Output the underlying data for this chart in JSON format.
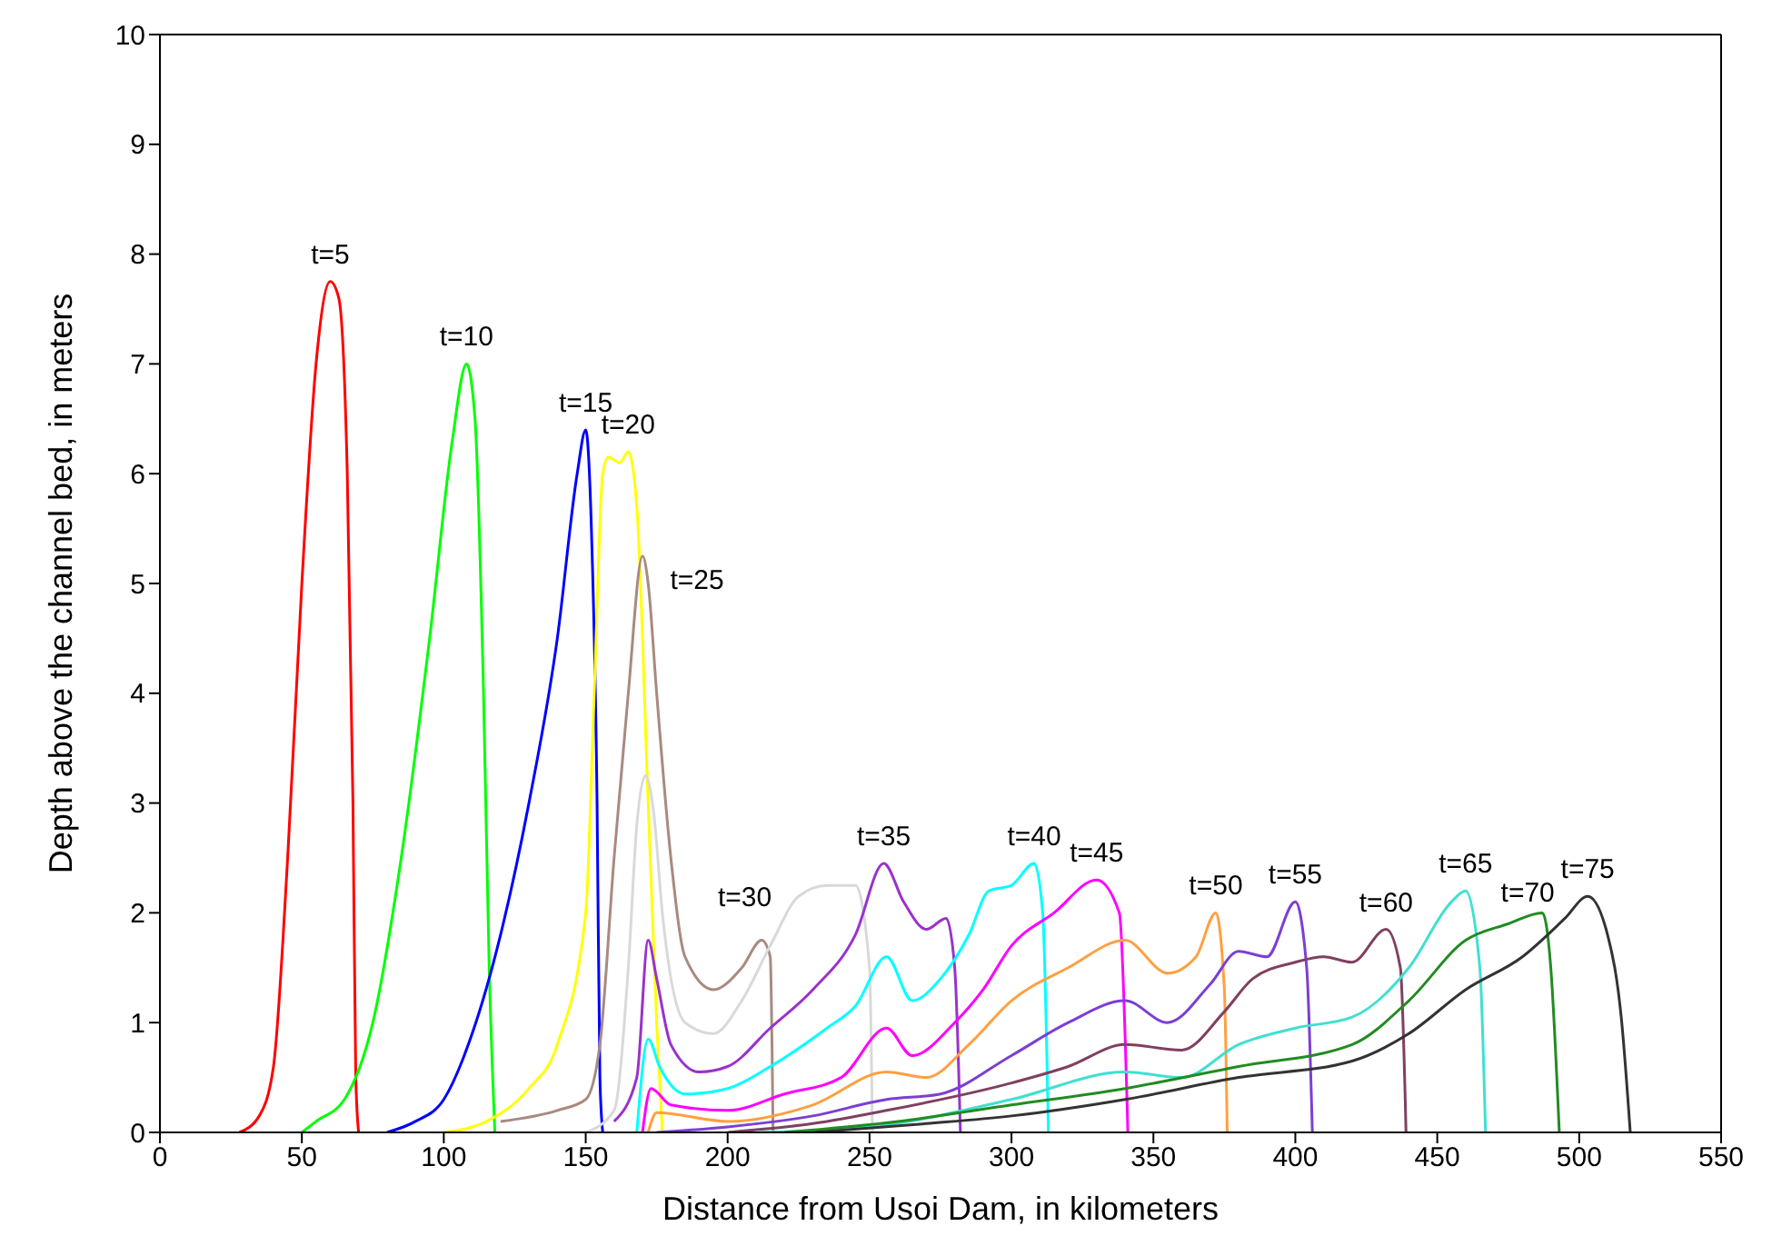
{
  "chart_data": {
    "type": "line",
    "xlabel": "Distance from Usoi Dam, in kilometers",
    "ylabel": "Depth above the channel bed, in meters",
    "xlim": [
      0,
      550
    ],
    "ylim": [
      0,
      10
    ],
    "xticks": [
      0,
      50,
      100,
      150,
      200,
      250,
      300,
      350,
      400,
      450,
      500,
      550
    ],
    "yticks": [
      0,
      1,
      2,
      3,
      4,
      5,
      6,
      7,
      8,
      9,
      10
    ],
    "legend": false,
    "series": [
      {
        "name": "t=5",
        "color": "#ff0000",
        "x": [
          28,
          35,
          40,
          45,
          50,
          55,
          60,
          63,
          66,
          68,
          69,
          70
        ],
        "values": [
          0,
          0.15,
          0.6,
          2.5,
          5,
          7,
          7.75,
          7.6,
          6,
          3,
          0.5,
          0
        ]
      },
      {
        "name": "t=10",
        "color": "#00ff00",
        "x": [
          50,
          55,
          65,
          75,
          85,
          95,
          103,
          108,
          111,
          114,
          116,
          118
        ],
        "values": [
          0,
          0.1,
          0.3,
          1,
          2.5,
          4.5,
          6.3,
          7,
          6.5,
          4,
          1.5,
          0
        ]
      },
      {
        "name": "t=15",
        "color": "#0000ff",
        "x": [
          80,
          90,
          100,
          110,
          120,
          130,
          140,
          147,
          150,
          152,
          154,
          155,
          156
        ],
        "values": [
          0,
          0.1,
          0.3,
          0.9,
          1.8,
          3,
          4.5,
          6,
          6.4,
          5.5,
          3,
          0.5,
          0
        ]
      },
      {
        "name": "t=20",
        "color": "#ffff00",
        "x": [
          100,
          115,
          130,
          140,
          150,
          153,
          156,
          158,
          162,
          165,
          168,
          172,
          175,
          177
        ],
        "values": [
          0,
          0.1,
          0.4,
          0.8,
          2,
          4,
          6,
          6.15,
          6.1,
          6.2,
          5.7,
          3,
          1,
          0
        ]
      },
      {
        "name": "t=25",
        "color": "#a88a80",
        "x": [
          120,
          140,
          150,
          155,
          160,
          165,
          170,
          172,
          175,
          180,
          185,
          195,
          205,
          212,
          215,
          216
        ],
        "values": [
          0.1,
          0.2,
          0.3,
          0.8,
          2.5,
          4,
          5.25,
          5,
          4,
          2.5,
          1.6,
          1.3,
          1.5,
          1.75,
          1.6,
          0
        ]
      },
      {
        "name": "t=30",
        "color": "#d9d9d9",
        "x": [
          150,
          160,
          165,
          168,
          171,
          174,
          177,
          185,
          195,
          205,
          215,
          225,
          235,
          245,
          250,
          251
        ],
        "values": [
          0,
          0.2,
          1.5,
          2.8,
          3.25,
          2.9,
          2,
          1,
          0.9,
          1.2,
          1.7,
          2.15,
          2.25,
          2.25,
          1.5,
          0
        ]
      },
      {
        "name": "t=35",
        "color": "#9932cc",
        "x": [
          160,
          168,
          172,
          175,
          180,
          190,
          200,
          215,
          230,
          245,
          255,
          262,
          270,
          277,
          280,
          282
        ],
        "values": [
          0.1,
          0.5,
          1.75,
          1.4,
          0.8,
          0.55,
          0.6,
          0.95,
          1.3,
          1.8,
          2.45,
          2.1,
          1.85,
          1.95,
          1.5,
          0
        ]
      },
      {
        "name": "t=40",
        "color": "#00ffff",
        "x": [
          168,
          172,
          176,
          185,
          200,
          215,
          235,
          245,
          256,
          265,
          275,
          285,
          292,
          300,
          308,
          311,
          313
        ],
        "values": [
          0,
          0.85,
          0.6,
          0.35,
          0.4,
          0.6,
          0.95,
          1.15,
          1.6,
          1.2,
          1.4,
          1.8,
          2.2,
          2.25,
          2.45,
          2,
          0
        ]
      },
      {
        "name": "t=45",
        "color": "#ff00ff",
        "x": [
          170,
          173,
          180,
          200,
          220,
          240,
          256,
          265,
          280,
          290,
          300,
          315,
          330,
          338,
          341
        ],
        "values": [
          0,
          0.4,
          0.25,
          0.2,
          0.35,
          0.5,
          0.95,
          0.7,
          1,
          1.3,
          1.7,
          2,
          2.3,
          2,
          0
        ]
      },
      {
        "name": "t=50",
        "color": "#ffa040",
        "x": [
          172,
          175,
          200,
          230,
          256,
          270,
          285,
          300,
          320,
          340,
          355,
          365,
          372,
          375,
          376
        ],
        "values": [
          0,
          0.18,
          0.1,
          0.25,
          0.55,
          0.5,
          0.8,
          1.2,
          1.5,
          1.75,
          1.45,
          1.6,
          2,
          1.3,
          0
        ]
      },
      {
        "name": "t=55",
        "color": "#7b3fd4",
        "x": [
          175,
          200,
          230,
          256,
          275,
          300,
          320,
          340,
          355,
          370,
          380,
          390,
          400,
          404,
          406
        ],
        "values": [
          0,
          0.05,
          0.15,
          0.3,
          0.35,
          0.7,
          1,
          1.2,
          1,
          1.35,
          1.65,
          1.6,
          2.1,
          1.5,
          0
        ]
      },
      {
        "name": "t=60",
        "color": "#804060",
        "x": [
          200,
          230,
          256,
          300,
          320,
          340,
          360,
          375,
          385,
          400,
          410,
          420,
          432,
          437,
          439
        ],
        "values": [
          0,
          0.08,
          0.2,
          0.45,
          0.6,
          0.8,
          0.75,
          1.1,
          1.4,
          1.55,
          1.6,
          1.55,
          1.85,
          1.5,
          0
        ]
      },
      {
        "name": "t=65",
        "color": "#40e0d0",
        "x": [
          210,
          250,
          300,
          340,
          360,
          380,
          400,
          420,
          440,
          455,
          460,
          465,
          467
        ],
        "values": [
          0,
          0.05,
          0.3,
          0.55,
          0.5,
          0.8,
          0.95,
          1.05,
          1.5,
          2.1,
          2.2,
          1.5,
          0
        ]
      },
      {
        "name": "t=70",
        "color": "#228b22",
        "x": [
          220,
          260,
          300,
          340,
          380,
          420,
          440,
          460,
          475,
          487,
          490,
          493
        ],
        "values": [
          0,
          0.1,
          0.25,
          0.4,
          0.6,
          0.8,
          1.2,
          1.75,
          1.9,
          2,
          1.5,
          0
        ]
      },
      {
        "name": "t=75",
        "color": "#333333",
        "x": [
          230,
          270,
          300,
          340,
          380,
          420,
          440,
          460,
          480,
          495,
          503,
          510,
          515,
          518
        ],
        "values": [
          0,
          0.08,
          0.15,
          0.3,
          0.5,
          0.65,
          0.9,
          1.3,
          1.6,
          1.95,
          2.15,
          1.8,
          1,
          0
        ]
      }
    ]
  }
}
